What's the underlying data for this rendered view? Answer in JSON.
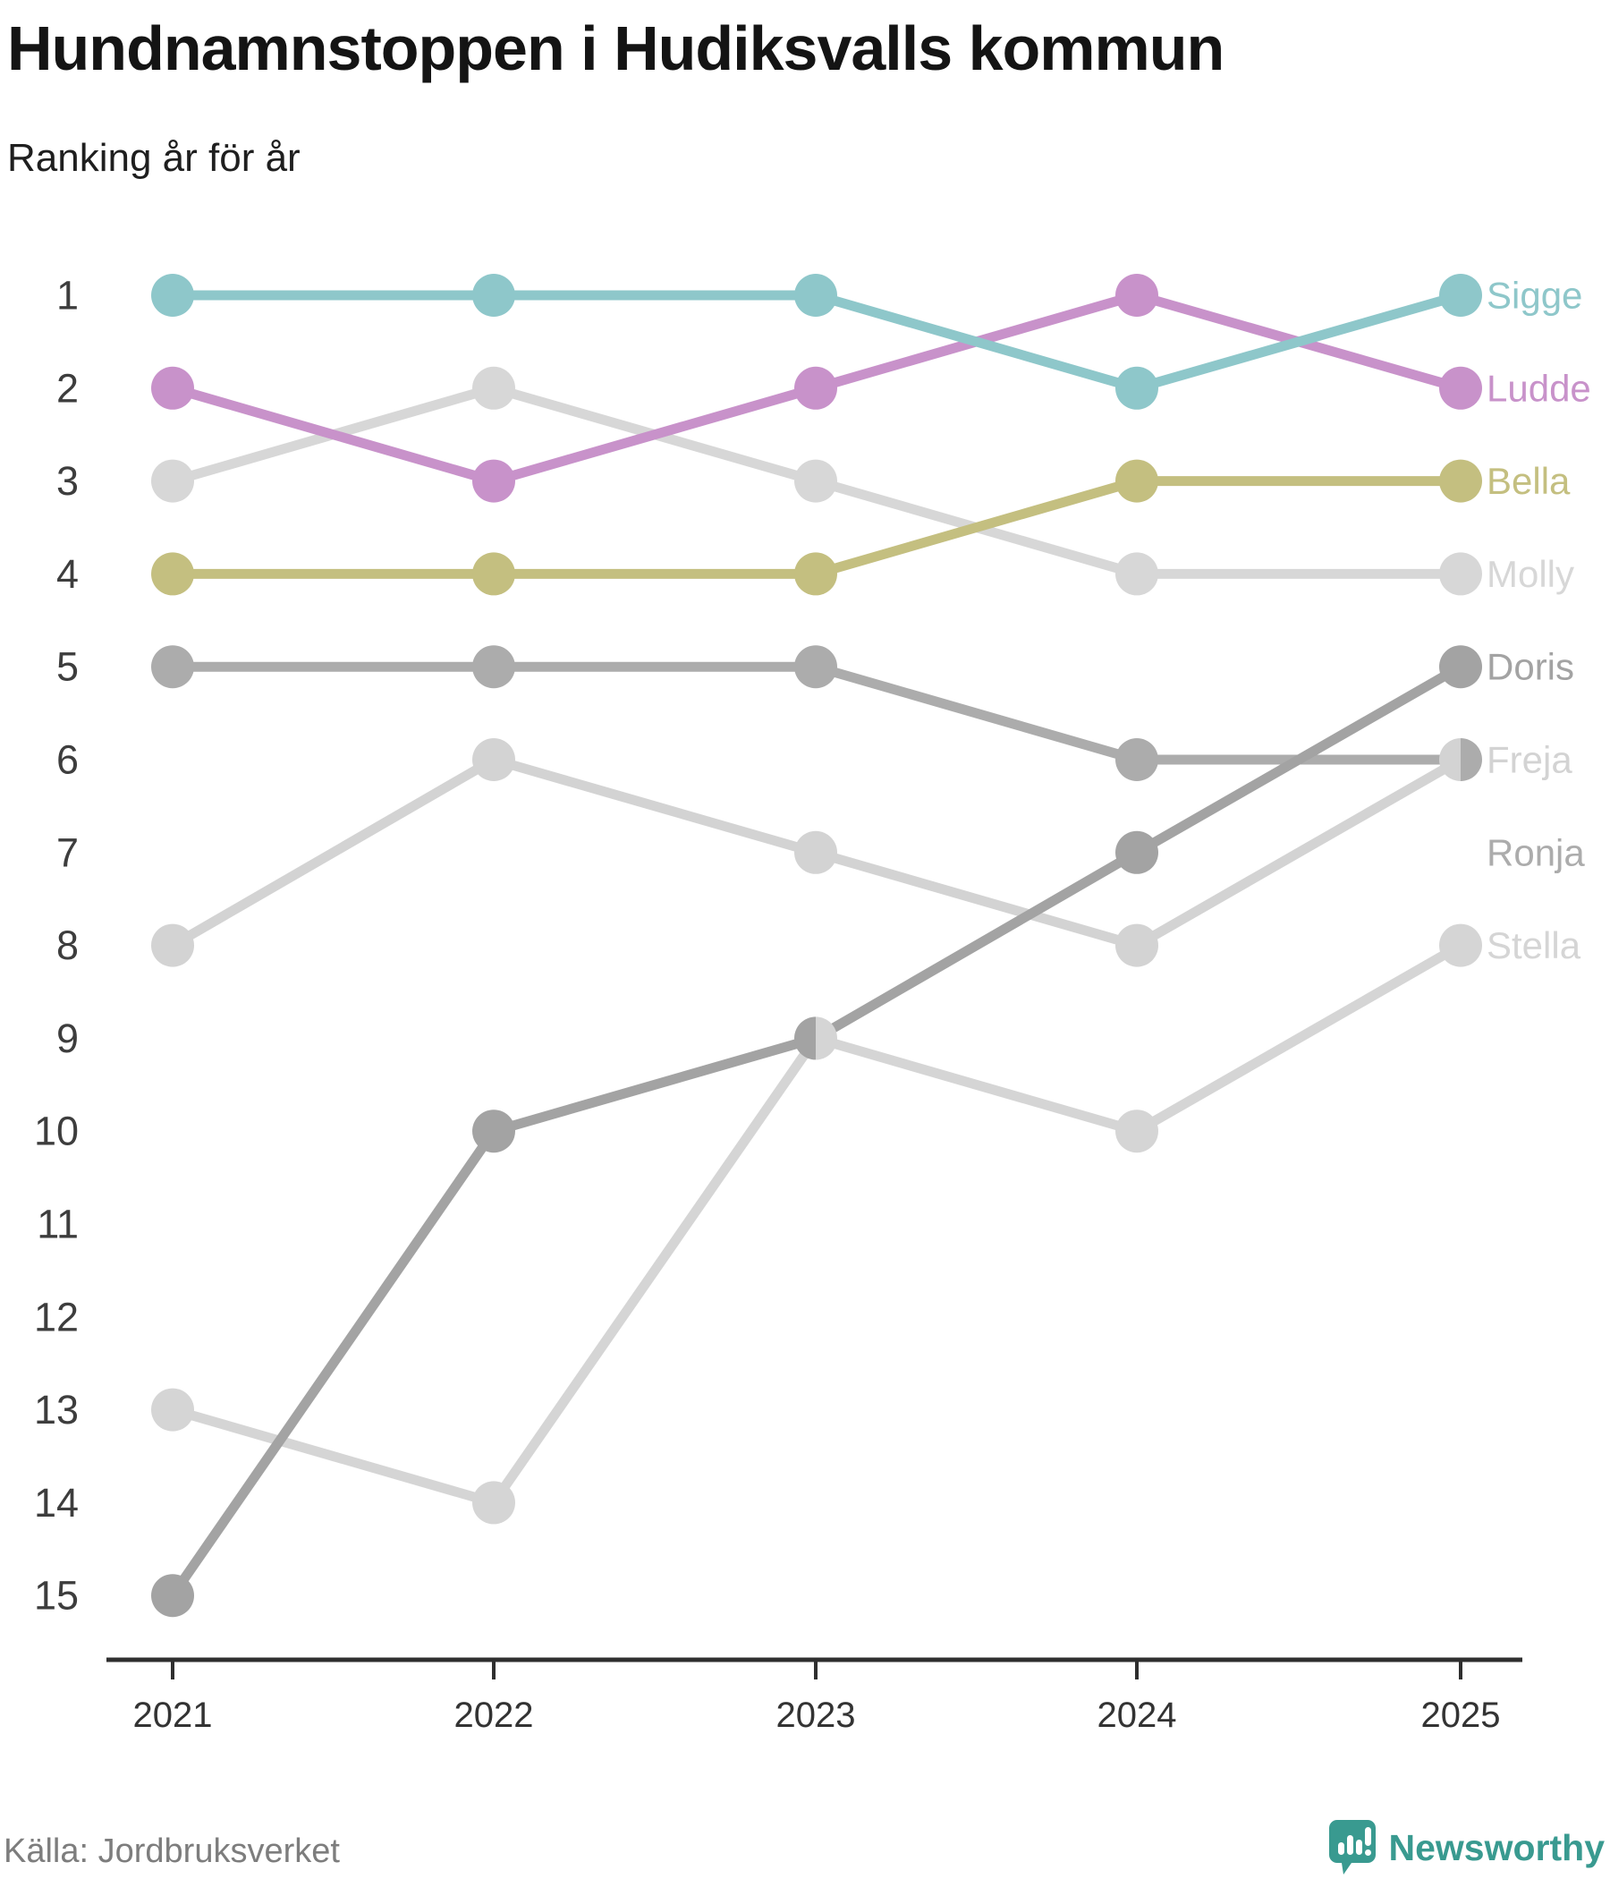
{
  "header": {
    "title": "Hundnamnstoppen i Hudiksvalls kommun",
    "subtitle": "Ranking år för år"
  },
  "footer": {
    "source": "Källa: Jordbruksverket",
    "brand": "Newsworthy",
    "brand_color": "#399a90"
  },
  "chart_data": {
    "type": "line",
    "subtype": "bump-ranking",
    "title": "Hundnamnstoppen i Hudiksvalls kommun",
    "subtitle": "Ranking år för år",
    "x": [
      "2021",
      "2022",
      "2023",
      "2024",
      "2025"
    ],
    "y_axis": {
      "kind": "rank",
      "ticks": [
        1,
        2,
        3,
        4,
        5,
        6,
        7,
        8,
        9,
        10,
        11,
        12,
        13,
        14,
        15
      ],
      "inverted": true,
      "grid": false
    },
    "legend_position": "right-edge-labels",
    "axis_color": "#2f2f2f",
    "rank_label_color": "#3d3d3d",
    "year_label_color": "#333333",
    "series": [
      {
        "name": "Sigge",
        "color": "#8ec7ca",
        "ranks": [
          1,
          1,
          1,
          2,
          1
        ]
      },
      {
        "name": "Ludde",
        "color": "#c892ca",
        "ranks": [
          2,
          3,
          2,
          1,
          2
        ]
      },
      {
        "name": "Bella",
        "color": "#c4bf80",
        "ranks": [
          4,
          4,
          4,
          3,
          3
        ]
      },
      {
        "name": "Molly",
        "color": "#d7d7d7",
        "ranks": [
          3,
          2,
          3,
          4,
          4
        ]
      },
      {
        "name": "Doris",
        "color": "#a3a3a3",
        "ranks": [
          15,
          10,
          9,
          7,
          5
        ]
      },
      {
        "name": "Freja",
        "color": "#d3d3d3",
        "ranks": [
          8,
          6,
          7,
          8,
          6
        ]
      },
      {
        "name": "Ronja",
        "color": "#acacac",
        "ranks": [
          5,
          5,
          5,
          6,
          6
        ],
        "label_rank": 7
      },
      {
        "name": "Stella",
        "color": "#d5d5d5",
        "ranks": [
          13,
          14,
          9,
          10,
          8
        ]
      }
    ],
    "draw_order": [
      "Stella",
      "Freja",
      "Molly",
      "Ronja",
      "Doris",
      "Bella",
      "Ludde",
      "Sigge"
    ],
    "ties": [
      {
        "year": "2023",
        "rank": 9,
        "left": "Doris",
        "right": "Stella"
      },
      {
        "year": "2025",
        "rank": 6,
        "left": "Freja",
        "right": "Ronja"
      }
    ]
  }
}
